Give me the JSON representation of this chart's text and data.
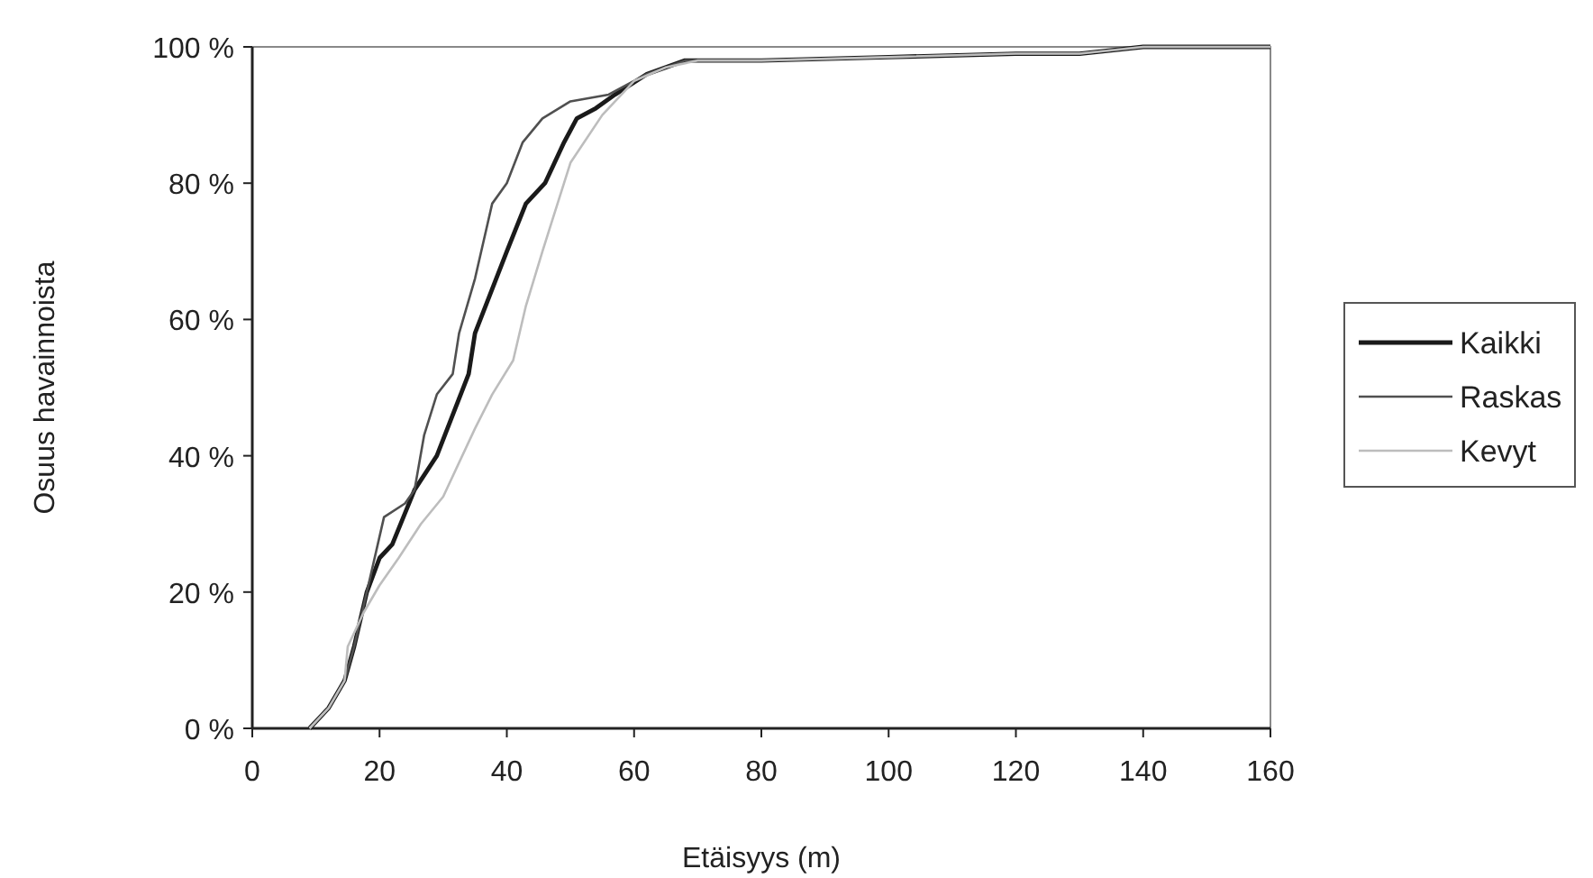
{
  "chart_data": {
    "type": "line",
    "xlabel": "Etäisyys (m)",
    "ylabel": "Osuus havainnoista",
    "xlim": [
      0,
      160
    ],
    "xticks": [
      0,
      20,
      40,
      60,
      80,
      100,
      120,
      140,
      160
    ],
    "ylim": [
      0,
      100
    ],
    "yticks": [
      {
        "value": 0,
        "label": "0 %"
      },
      {
        "value": 20,
        "label": "20 %"
      },
      {
        "value": 40,
        "label": "40 %"
      },
      {
        "value": 60,
        "label": "60 %"
      },
      {
        "value": 80,
        "label": "80 %"
      },
      {
        "value": 100,
        "label": "100 %"
      }
    ],
    "legend": "right",
    "grid": false,
    "series": [
      {
        "name": "Kaikki",
        "color": "#1a1a1a",
        "x": [
          9,
          12,
          14.5,
          16,
          18,
          20,
          22,
          25.5,
          29,
          34,
          35,
          40,
          43,
          46,
          49,
          51,
          54,
          57,
          62,
          68,
          80,
          100,
          120,
          130,
          140,
          160
        ],
        "values": [
          0,
          3,
          7,
          12,
          20,
          25,
          27,
          35,
          40,
          52,
          58,
          70,
          77,
          80,
          86,
          89.5,
          91,
          93,
          96,
          98,
          98,
          98.5,
          99,
          99,
          100,
          100
        ]
      },
      {
        "name": "Raskas",
        "color": "#505050",
        "x": [
          9,
          12,
          14.5,
          16,
          18,
          20.7,
          24,
          25.5,
          27,
          29,
          31.5,
          32.5,
          35,
          37.7,
          40,
          42.5,
          45.6,
          50,
          56,
          62,
          68,
          80,
          100,
          120,
          130,
          140,
          160
        ],
        "values": [
          0,
          3,
          7,
          12,
          20,
          31,
          33,
          35,
          43,
          49,
          52,
          58,
          66,
          77,
          80,
          86,
          89.5,
          92,
          93,
          96,
          98,
          98,
          98.5,
          99,
          99,
          100,
          100
        ]
      },
      {
        "name": "Kevyt",
        "color": "#bdbdbd",
        "x": [
          9,
          12,
          14.5,
          15,
          17.5,
          20,
          23,
          26.5,
          30,
          35,
          37.7,
          41,
          43,
          45.6,
          50,
          55,
          60,
          65,
          70,
          80,
          100,
          120,
          130,
          140,
          160
        ],
        "values": [
          0,
          3,
          7,
          12,
          17,
          21,
          25,
          30,
          34,
          44,
          49,
          54,
          62,
          70,
          83,
          90,
          95,
          97,
          98,
          98,
          98.5,
          99,
          99,
          100,
          100
        ]
      }
    ]
  }
}
